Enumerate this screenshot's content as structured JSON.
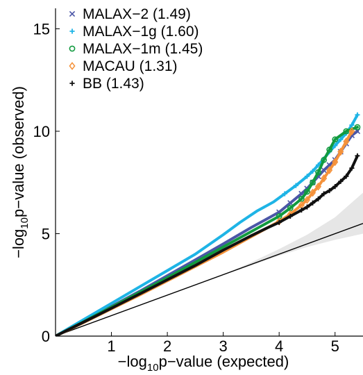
{
  "chart_data": {
    "type": "scatter",
    "title": "",
    "xlabel": {
      "prefix": "−log",
      "sub": "10",
      "suffix": "p−value (expected)"
    },
    "ylabel": {
      "prefix": "−log",
      "sub": "10",
      "suffix": "p−value (observed)"
    },
    "xlim": [
      0,
      5.5
    ],
    "ylim": [
      0,
      16
    ],
    "xticks": [
      {
        "value": 1,
        "label": "1"
      },
      {
        "value": 2,
        "label": "2"
      },
      {
        "value": 3,
        "label": "3"
      },
      {
        "value": 4,
        "label": "4"
      },
      {
        "value": 5,
        "label": "5"
      }
    ],
    "yticks": [
      {
        "value": 0,
        "label": "0"
      },
      {
        "value": 5,
        "label": "5"
      },
      {
        "value": 10,
        "label": "10"
      },
      {
        "value": 15,
        "label": "15"
      }
    ],
    "grid": false,
    "legend_position": "top-left",
    "reference_line": {
      "x": [
        0,
        5.5
      ],
      "y": [
        0,
        5.5
      ],
      "color": "#000000"
    },
    "confidence_band": {
      "color": "#e6e6e6",
      "x": [
        0,
        1,
        2,
        3,
        3.5,
        4,
        4.5,
        5,
        5.5
      ],
      "lower": [
        0,
        1,
        2,
        3,
        3.45,
        3.92,
        4.35,
        4.7,
        5.0
      ],
      "upper": [
        0,
        1,
        2,
        3,
        3.6,
        4.25,
        4.95,
        5.8,
        7.0
      ]
    },
    "series": [
      {
        "name": "MALAX−2 (1.49)",
        "color": "#4b56a7",
        "marker": "x",
        "x": [
          0,
          0.5,
          1,
          1.5,
          2,
          2.5,
          3,
          3.5,
          3.8,
          4.0,
          4.2,
          4.4,
          4.5,
          4.6,
          4.7,
          4.8,
          4.9,
          5.0,
          5.1,
          5.2,
          5.3,
          5.4
        ],
        "y": [
          0,
          0.72,
          1.45,
          2.18,
          2.95,
          3.72,
          4.5,
          5.3,
          5.75,
          6.05,
          6.5,
          6.95,
          7.2,
          7.5,
          7.8,
          8.1,
          8.35,
          8.6,
          9.0,
          9.4,
          9.8,
          10.0
        ]
      },
      {
        "name": "MALAX−1g (1.60)",
        "color": "#1eb4e6",
        "marker": "+",
        "x": [
          0,
          0.5,
          1,
          1.5,
          2,
          2.5,
          3,
          3.3,
          3.6,
          3.9,
          4.1,
          4.3,
          4.5,
          4.6,
          4.7,
          4.8,
          4.9,
          5.0,
          5.1,
          5.2,
          5.3,
          5.4
        ],
        "y": [
          0,
          0.8,
          1.6,
          2.4,
          3.2,
          4.0,
          4.95,
          5.55,
          6.1,
          6.55,
          6.95,
          7.35,
          7.8,
          8.05,
          8.35,
          8.65,
          9.0,
          9.3,
          9.6,
          9.9,
          10.3,
          10.8
        ]
      },
      {
        "name": "MALAX−1m (1.45)",
        "color": "#119a3f",
        "marker": "o",
        "x": [
          0,
          0.5,
          1,
          1.5,
          2,
          2.5,
          3,
          3.5,
          3.8,
          4.0,
          4.2,
          4.4,
          4.5,
          4.6,
          4.7,
          4.8,
          4.9,
          5.0,
          5.2,
          5.4
        ],
        "y": [
          0,
          0.7,
          1.42,
          2.13,
          2.85,
          3.6,
          4.35,
          5.1,
          5.55,
          5.85,
          6.25,
          6.7,
          7.05,
          7.5,
          8.0,
          8.6,
          9.1,
          9.6,
          10.0,
          10.2
        ]
      },
      {
        "name": "MACAU (1.31)",
        "color": "#f5923a",
        "marker": "diamond",
        "x": [
          0,
          0.5,
          1,
          1.5,
          2,
          2.5,
          3,
          3.5,
          3.8,
          4.0,
          4.2,
          4.4,
          4.5,
          4.6,
          4.7,
          4.8,
          4.9,
          5.0,
          5.1,
          5.2,
          5.3
        ],
        "y": [
          0,
          0.66,
          1.33,
          2.0,
          2.7,
          3.4,
          4.1,
          4.85,
          5.3,
          5.6,
          5.95,
          6.4,
          6.65,
          7.0,
          7.3,
          7.7,
          8.1,
          8.5,
          9.0,
          9.5,
          10.0
        ]
      },
      {
        "name": "BB (1.43)",
        "color": "#111111",
        "marker": "+",
        "x": [
          0,
          0.5,
          1,
          1.5,
          2,
          2.5,
          3,
          3.5,
          3.8,
          4.0,
          4.2,
          4.4,
          4.5,
          4.6,
          4.7,
          4.8,
          4.9,
          5.0,
          5.1,
          5.2,
          5.3,
          5.4
        ],
        "y": [
          0,
          0.68,
          1.36,
          2.05,
          2.75,
          3.45,
          4.2,
          4.9,
          5.3,
          5.55,
          5.85,
          6.15,
          6.3,
          6.5,
          6.7,
          6.95,
          7.1,
          7.3,
          7.55,
          7.8,
          8.2,
          8.8
        ]
      }
    ]
  }
}
